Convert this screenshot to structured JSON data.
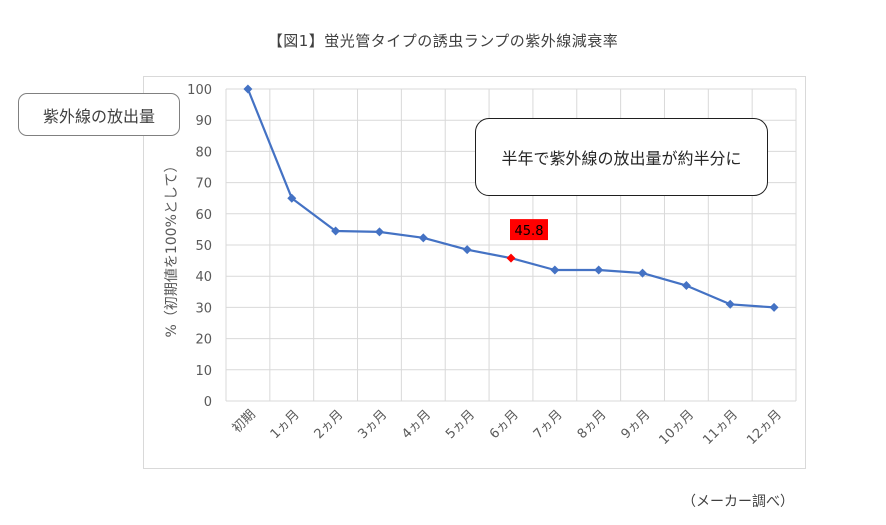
{
  "figure": {
    "title": "【図1】蛍光管タイプの誘虫ランプの紫外線減衰率",
    "source": "（メーカー調べ）"
  },
  "callouts": {
    "left": "紫外線の放出量",
    "right": "半年で紫外線の放出量が約半分に"
  },
  "colors": {
    "line": "#4472c4",
    "highlight": "#ff0000",
    "grid": "#d9d9d9"
  },
  "chart_data": {
    "type": "line",
    "categories": [
      "初期",
      "1ヵ月",
      "2ヵ月",
      "3ヵ月",
      "4ヵ月",
      "5ヵ月",
      "6ヵ月",
      "7ヵ月",
      "8ヵ月",
      "9ヵ月",
      "10ヵ月",
      "11ヵ月",
      "12ヵ月"
    ],
    "series": [
      {
        "values": [
          100,
          65,
          54.5,
          54.2,
          52.3,
          48.5,
          45.8,
          42,
          42,
          41,
          37,
          31,
          30
        ]
      }
    ],
    "highlight": {
      "index": 6,
      "label": "45.8"
    },
    "ylabel": "%（初期値を100%として）",
    "ylim": [
      0,
      100
    ],
    "yticks": [
      0,
      10,
      20,
      30,
      40,
      50,
      60,
      70,
      80,
      90,
      100
    ],
    "grid": true,
    "marker": "diamond"
  }
}
